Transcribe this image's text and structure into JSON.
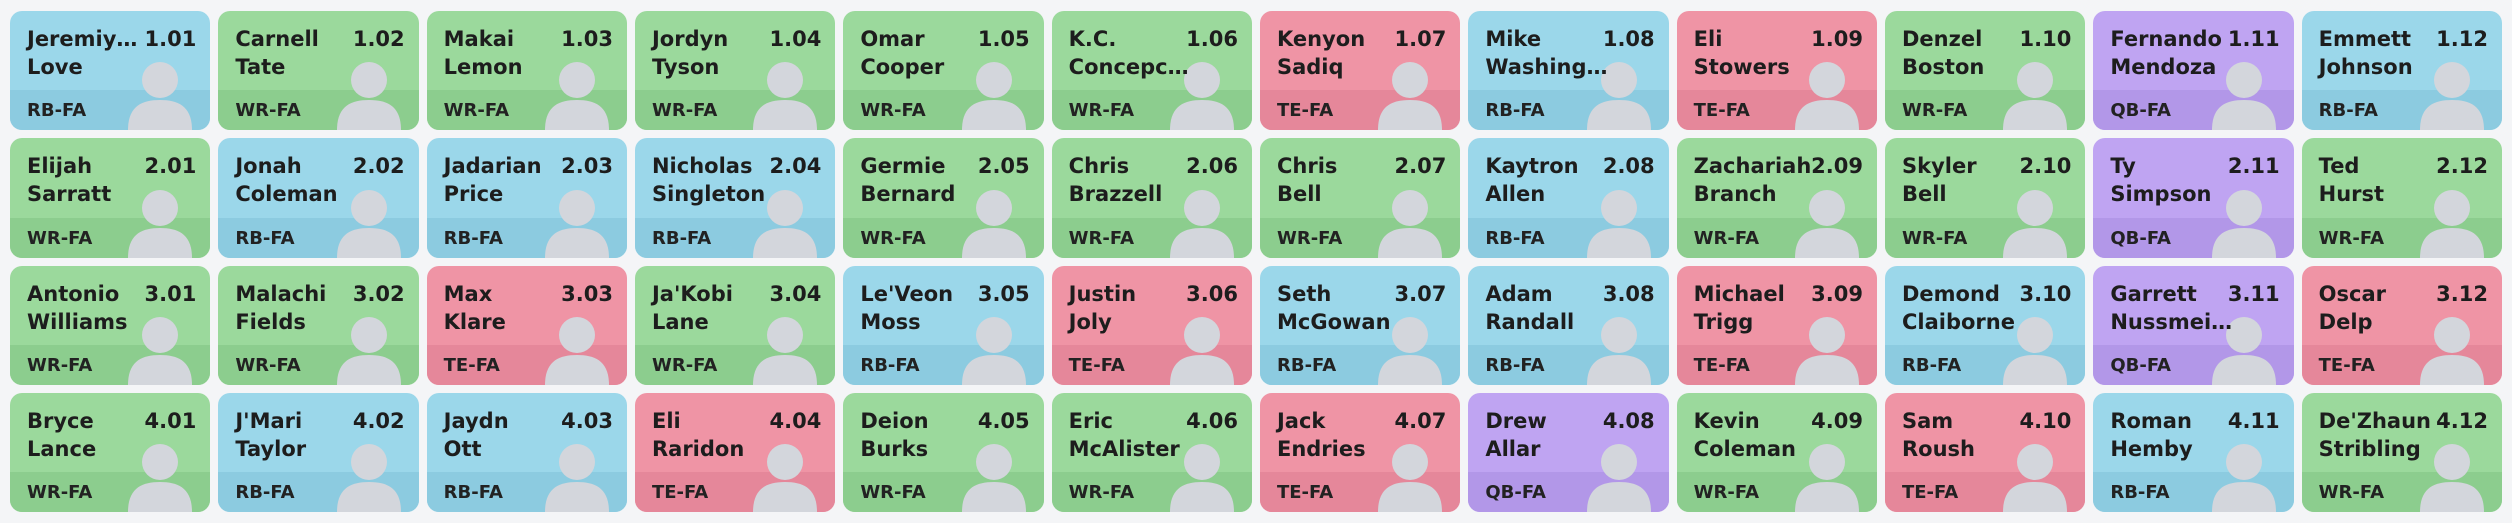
{
  "board": {
    "colors": {
      "RB": {
        "top": "#9bd7ea",
        "band": "#8ccbe0"
      },
      "WR": {
        "top": "#9bd99c",
        "band": "#8ccd8e"
      },
      "TE": {
        "top": "#ef94a5",
        "band": "#e5879a"
      },
      "QB": {
        "top": "#bfa4f2",
        "band": "#b297e8"
      }
    },
    "picks": [
      {
        "first": "Jeremiy…",
        "last": "Love",
        "pick": "1.01",
        "position": "RB-FA",
        "group": "RB"
      },
      {
        "first": "Carnell",
        "last": "Tate",
        "pick": "1.02",
        "position": "WR-FA",
        "group": "WR"
      },
      {
        "first": "Makai",
        "last": "Lemon",
        "pick": "1.03",
        "position": "WR-FA",
        "group": "WR"
      },
      {
        "first": "Jordyn",
        "last": "Tyson",
        "pick": "1.04",
        "position": "WR-FA",
        "group": "WR"
      },
      {
        "first": "Omar",
        "last": "Cooper",
        "pick": "1.05",
        "position": "WR-FA",
        "group": "WR"
      },
      {
        "first": "K.C.",
        "last": "Concepc…",
        "pick": "1.06",
        "position": "WR-FA",
        "group": "WR"
      },
      {
        "first": "Kenyon",
        "last": "Sadiq",
        "pick": "1.07",
        "position": "TE-FA",
        "group": "TE"
      },
      {
        "first": "Mike",
        "last": "Washing…",
        "pick": "1.08",
        "position": "RB-FA",
        "group": "RB"
      },
      {
        "first": "Eli",
        "last": "Stowers",
        "pick": "1.09",
        "position": "TE-FA",
        "group": "TE"
      },
      {
        "first": "Denzel",
        "last": "Boston",
        "pick": "1.10",
        "position": "WR-FA",
        "group": "WR"
      },
      {
        "first": "Fernando",
        "last": "Mendoza",
        "pick": "1.11",
        "position": "QB-FA",
        "group": "QB"
      },
      {
        "first": "Emmett",
        "last": "Johnson",
        "pick": "1.12",
        "position": "RB-FA",
        "group": "RB"
      },
      {
        "first": "Elijah",
        "last": "Sarratt",
        "pick": "2.01",
        "position": "WR-FA",
        "group": "WR"
      },
      {
        "first": "Jonah",
        "last": "Coleman",
        "pick": "2.02",
        "position": "RB-FA",
        "group": "RB"
      },
      {
        "first": "Jadarian",
        "last": "Price",
        "pick": "2.03",
        "position": "RB-FA",
        "group": "RB"
      },
      {
        "first": "Nicholas",
        "last": "Singleton",
        "pick": "2.04",
        "position": "RB-FA",
        "group": "RB"
      },
      {
        "first": "Germie",
        "last": "Bernard",
        "pick": "2.05",
        "position": "WR-FA",
        "group": "WR"
      },
      {
        "first": "Chris",
        "last": "Brazzell",
        "pick": "2.06",
        "position": "WR-FA",
        "group": "WR"
      },
      {
        "first": "Chris",
        "last": "Bell",
        "pick": "2.07",
        "position": "WR-FA",
        "group": "WR"
      },
      {
        "first": "Kaytron",
        "last": "Allen",
        "pick": "2.08",
        "position": "RB-FA",
        "group": "RB"
      },
      {
        "first": "Zachariah",
        "last": "Branch",
        "pick": "2.09",
        "position": "WR-FA",
        "group": "WR"
      },
      {
        "first": "Skyler",
        "last": "Bell",
        "pick": "2.10",
        "position": "WR-FA",
        "group": "WR"
      },
      {
        "first": "Ty",
        "last": "Simpson",
        "pick": "2.11",
        "position": "QB-FA",
        "group": "QB"
      },
      {
        "first": "Ted",
        "last": "Hurst",
        "pick": "2.12",
        "position": "WR-FA",
        "group": "WR"
      },
      {
        "first": "Antonio",
        "last": "Williams",
        "pick": "3.01",
        "position": "WR-FA",
        "group": "WR"
      },
      {
        "first": "Malachi",
        "last": "Fields",
        "pick": "3.02",
        "position": "WR-FA",
        "group": "WR"
      },
      {
        "first": "Max",
        "last": "Klare",
        "pick": "3.03",
        "position": "TE-FA",
        "group": "TE"
      },
      {
        "first": "Ja'Kobi",
        "last": "Lane",
        "pick": "3.04",
        "position": "WR-FA",
        "group": "WR"
      },
      {
        "first": "Le'Veon",
        "last": "Moss",
        "pick": "3.05",
        "position": "RB-FA",
        "group": "RB"
      },
      {
        "first": "Justin",
        "last": "Joly",
        "pick": "3.06",
        "position": "TE-FA",
        "group": "TE"
      },
      {
        "first": "Seth",
        "last": "McGowan",
        "pick": "3.07",
        "position": "RB-FA",
        "group": "RB"
      },
      {
        "first": "Adam",
        "last": "Randall",
        "pick": "3.08",
        "position": "RB-FA",
        "group": "RB"
      },
      {
        "first": "Michael",
        "last": "Trigg",
        "pick": "3.09",
        "position": "TE-FA",
        "group": "TE"
      },
      {
        "first": "Demond",
        "last": "Claiborne",
        "pick": "3.10",
        "position": "RB-FA",
        "group": "RB"
      },
      {
        "first": "Garrett",
        "last": "Nussmei…",
        "pick": "3.11",
        "position": "QB-FA",
        "group": "QB"
      },
      {
        "first": "Oscar",
        "last": "Delp",
        "pick": "3.12",
        "position": "TE-FA",
        "group": "TE"
      },
      {
        "first": "Bryce",
        "last": "Lance",
        "pick": "4.01",
        "position": "WR-FA",
        "group": "WR"
      },
      {
        "first": "J'Mari",
        "last": "Taylor",
        "pick": "4.02",
        "position": "RB-FA",
        "group": "RB"
      },
      {
        "first": "Jaydn",
        "last": "Ott",
        "pick": "4.03",
        "position": "RB-FA",
        "group": "RB"
      },
      {
        "first": "Eli",
        "last": "Raridon",
        "pick": "4.04",
        "position": "TE-FA",
        "group": "TE"
      },
      {
        "first": "Deion",
        "last": "Burks",
        "pick": "4.05",
        "position": "WR-FA",
        "group": "WR"
      },
      {
        "first": "Eric",
        "last": "McAlister",
        "pick": "4.06",
        "position": "WR-FA",
        "group": "WR"
      },
      {
        "first": "Jack",
        "last": "Endries",
        "pick": "4.07",
        "position": "TE-FA",
        "group": "TE"
      },
      {
        "first": "Drew",
        "last": "Allar",
        "pick": "4.08",
        "position": "QB-FA",
        "group": "QB"
      },
      {
        "first": "Kevin",
        "last": "Coleman",
        "pick": "4.09",
        "position": "WR-FA",
        "group": "WR"
      },
      {
        "first": "Sam",
        "last": "Roush",
        "pick": "4.10",
        "position": "TE-FA",
        "group": "TE"
      },
      {
        "first": "Roman",
        "last": "Hemby",
        "pick": "4.11",
        "position": "RB-FA",
        "group": "RB"
      },
      {
        "first": "De'Zhaun",
        "last": "Stribling",
        "pick": "4.12",
        "position": "WR-FA",
        "group": "WR"
      }
    ]
  }
}
